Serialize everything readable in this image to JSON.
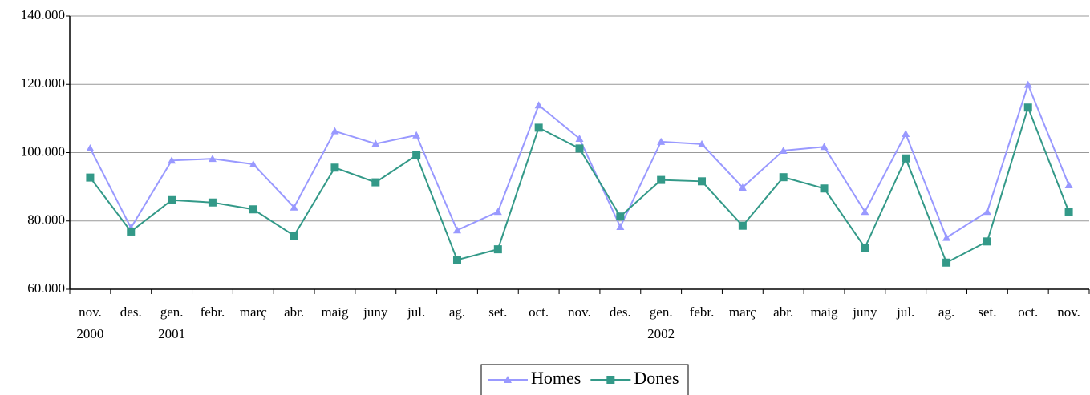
{
  "chart_data": {
    "type": "line",
    "categories": [
      [
        "nov.",
        "2000"
      ],
      [
        "des."
      ],
      [
        "gen.",
        "2001"
      ],
      [
        "febr."
      ],
      [
        "març"
      ],
      [
        "abr."
      ],
      [
        "maig"
      ],
      [
        "juny"
      ],
      [
        "jul."
      ],
      [
        "ag."
      ],
      [
        "set."
      ],
      [
        "oct."
      ],
      [
        "nov."
      ],
      [
        "des."
      ],
      [
        "gen.",
        "2002"
      ],
      [
        "febr."
      ],
      [
        "març"
      ],
      [
        "abr."
      ],
      [
        "maig"
      ],
      [
        "juny"
      ],
      [
        "jul."
      ],
      [
        "ag."
      ],
      [
        "set."
      ],
      [
        "oct."
      ],
      [
        "nov."
      ]
    ],
    "series": [
      {
        "name": "Homes",
        "color": "#9999ff",
        "marker": "triangle",
        "values": [
          101300,
          78000,
          97700,
          98200,
          96600,
          84000,
          106300,
          102600,
          105100,
          77300,
          82700,
          113900,
          104100,
          78300,
          103200,
          102500,
          89800,
          100600,
          101700,
          82700,
          105500,
          75100,
          82700,
          119900,
          90500
        ]
      },
      {
        "name": "Dones",
        "color": "#339988",
        "marker": "square",
        "values": [
          92700,
          76900,
          86100,
          85400,
          83400,
          75700,
          95600,
          91300,
          99200,
          68600,
          71700,
          107300,
          101200,
          81300,
          92000,
          91600,
          78600,
          92800,
          89500,
          72200,
          98300,
          67800,
          74000,
          113200,
          82700
        ]
      }
    ],
    "ylim": [
      60000,
      140000
    ],
    "yticks": [
      {
        "value": 60000,
        "label": "60.000"
      },
      {
        "value": 80000,
        "label": "80.000"
      },
      {
        "value": 100000,
        "label": "100.000"
      },
      {
        "value": 120000,
        "label": "120.000"
      },
      {
        "value": 140000,
        "label": "140.000"
      }
    ],
    "grid": true,
    "legend": "bottom"
  }
}
